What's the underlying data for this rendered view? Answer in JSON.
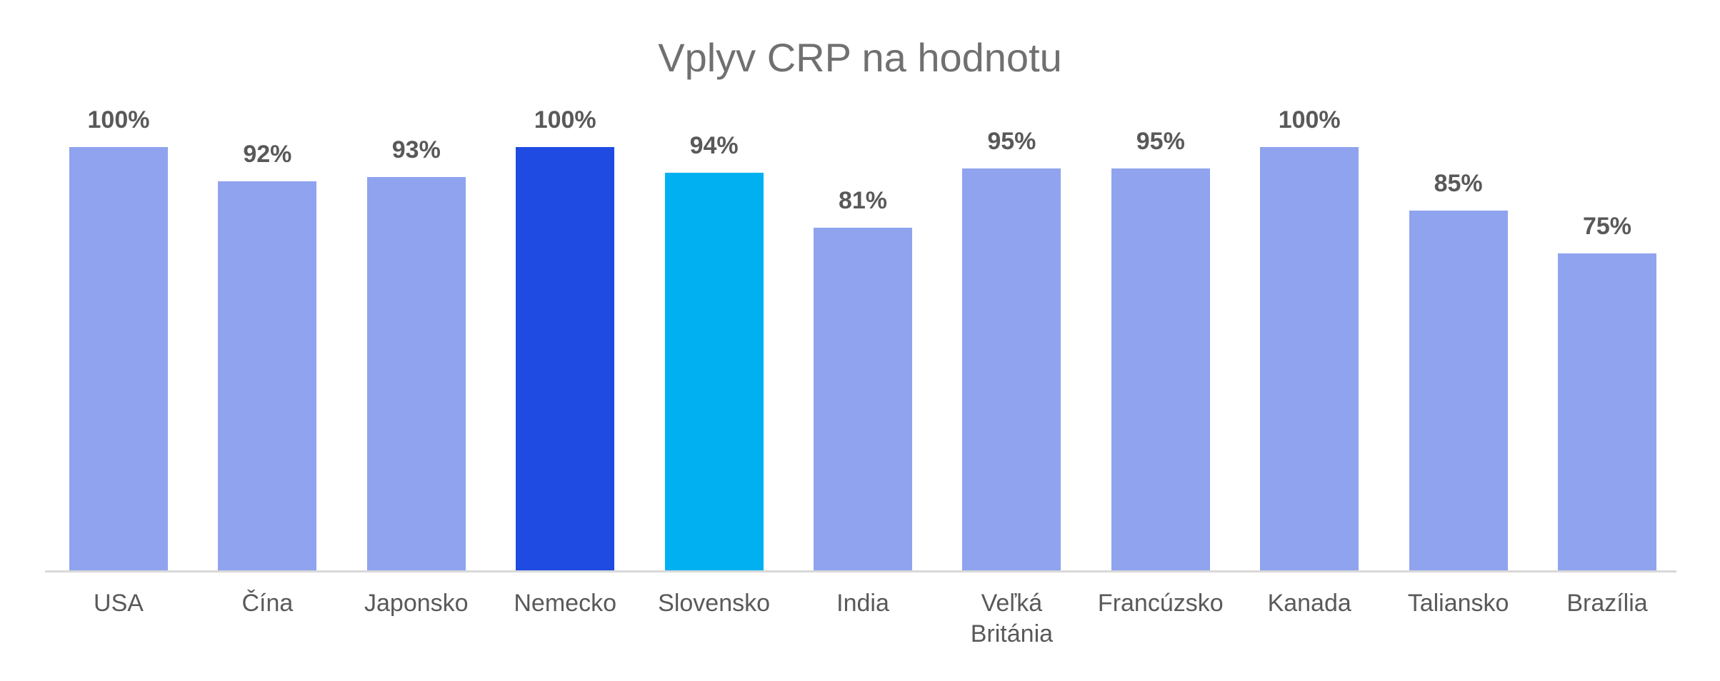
{
  "chart_data": {
    "type": "bar",
    "title": "Vplyv CRP na hodnotu",
    "categories": [
      "USA",
      "Čína",
      "Japonsko",
      "Nemecko",
      "Slovensko",
      "India",
      "Veľká Británia",
      "Francúzsko",
      "Kanada",
      "Taliansko",
      "Brazília"
    ],
    "values": [
      100,
      92,
      93,
      100,
      94,
      81,
      95,
      95,
      100,
      85,
      75
    ],
    "value_labels": [
      "100%",
      "92%",
      "93%",
      "100%",
      "94%",
      "81%",
      "95%",
      "95%",
      "100%",
      "85%",
      "75%"
    ],
    "colors": [
      "#8FA3EE",
      "#8FA3EE",
      "#8FA3EE",
      "#1F4BE2",
      "#00B0F0",
      "#8FA3EE",
      "#8FA3EE",
      "#8FA3EE",
      "#8FA3EE",
      "#8FA3EE",
      "#8FA3EE"
    ],
    "xlabel": "",
    "ylabel": "",
    "ylim": [
      0,
      100
    ],
    "grid": false,
    "legend": null
  }
}
